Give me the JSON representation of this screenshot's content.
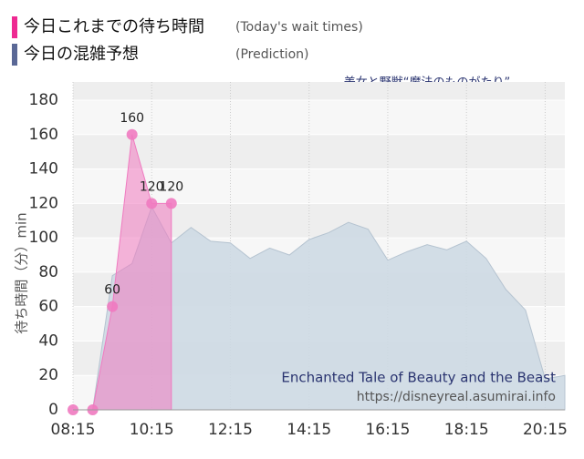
{
  "chart_data": {
    "type": "area",
    "title": "美女と野獣“魔法のものがたり”",
    "ylabel": "待ち時間（分）min",
    "annotations": [
      "Enchanted Tale of Beauty and the Beast",
      "https://disneyreal.asumirai.info"
    ],
    "xlim": [
      "08:15",
      "20:45"
    ],
    "xticks": [
      "08:15",
      "10:15",
      "12:15",
      "14:15",
      "16:15",
      "18:15",
      "20:15"
    ],
    "ylim": [
      0,
      180
    ],
    "yticks": [
      0,
      20,
      40,
      60,
      80,
      100,
      120,
      140,
      160,
      180
    ],
    "grid": true,
    "legend": "top-left",
    "series": [
      {
        "name": "今日の混雑予想",
        "note": "(Prediction)",
        "color": "#5a6896",
        "fill": "#cdd9e3",
        "x": [
          "08:15",
          "08:45",
          "09:15",
          "09:45",
          "10:15",
          "10:45",
          "11:15",
          "11:45",
          "12:15",
          "12:45",
          "13:15",
          "13:45",
          "14:15",
          "14:45",
          "15:15",
          "15:45",
          "16:15",
          "16:45",
          "17:15",
          "17:45",
          "18:15",
          "18:45",
          "19:15",
          "19:45",
          "20:15",
          "20:45"
        ],
        "values": [
          0,
          0,
          78,
          85,
          118,
          97,
          106,
          98,
          97,
          88,
          94,
          90,
          99,
          103,
          109,
          105,
          87,
          92,
          96,
          93,
          98,
          88,
          70,
          58,
          18,
          20
        ]
      },
      {
        "name": "今日これまでの待ち時間",
        "note": "(Today's wait times)",
        "color": "#ee2a92",
        "fill": "#f07ac0",
        "x": [
          "08:15",
          "08:45",
          "09:15",
          "09:45",
          "10:15",
          "10:45"
        ],
        "values": [
          0,
          0,
          60,
          160,
          120,
          120
        ]
      }
    ]
  }
}
